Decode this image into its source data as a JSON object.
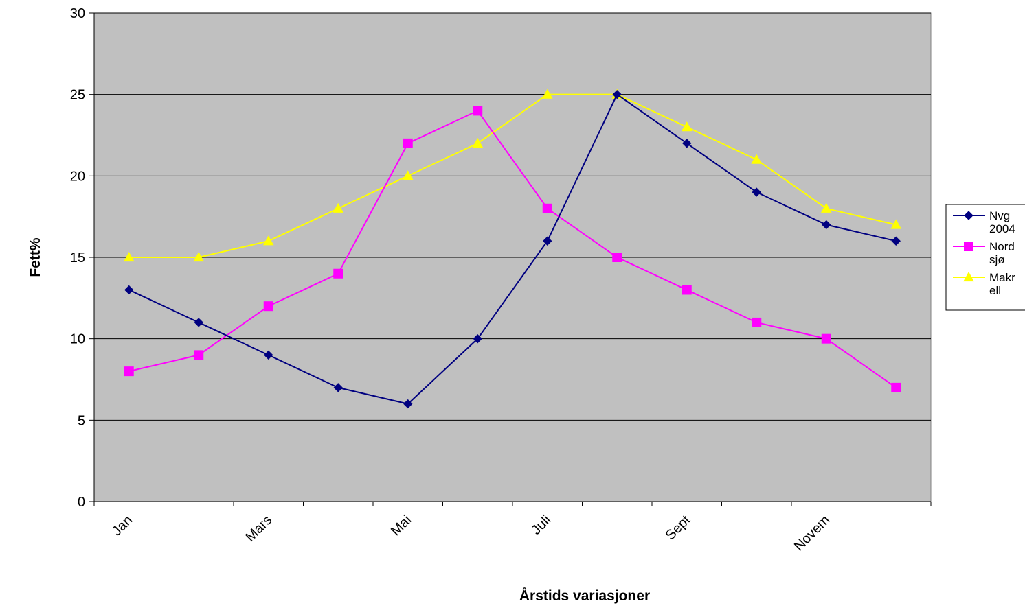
{
  "chart_data": {
    "type": "line",
    "categories": [
      "Jan",
      "",
      "Mars",
      "",
      "Mai",
      "",
      "Juli",
      "",
      "Sept",
      "",
      "Novem",
      ""
    ],
    "series": [
      {
        "name": "Nvg 2004",
        "name_lines": [
          "Nvg",
          "2004"
        ],
        "color": "#000080",
        "marker": "diamond",
        "values": [
          13,
          11,
          9,
          7,
          6,
          10,
          16,
          25,
          22,
          19,
          17,
          16
        ]
      },
      {
        "name": "Nord sjø",
        "name_lines": [
          "Nord",
          "sjø"
        ],
        "color": "#ff00ff",
        "marker": "square",
        "values": [
          8,
          9,
          12,
          14,
          22,
          24,
          18,
          15,
          13,
          11,
          10,
          7
        ]
      },
      {
        "name": "Makrell",
        "name_lines": [
          "Makr",
          "ell"
        ],
        "color": "#ffff00",
        "marker": "triangle",
        "values": [
          15,
          15,
          16,
          18,
          20,
          22,
          25,
          25,
          23,
          21,
          18,
          17
        ]
      }
    ],
    "xlabel": "Årstids variasjoner",
    "ylabel": "Fett%",
    "ylim": [
      0,
      30
    ],
    "yticks": [
      0,
      5,
      10,
      15,
      20,
      25,
      30
    ],
    "xtick_labels_shown": [
      "Jan",
      "Mars",
      "Mai",
      "Juli",
      "Sept",
      "Novem"
    ],
    "grid": true,
    "legend_position": "right",
    "plot_background": "#c0c0c0"
  }
}
